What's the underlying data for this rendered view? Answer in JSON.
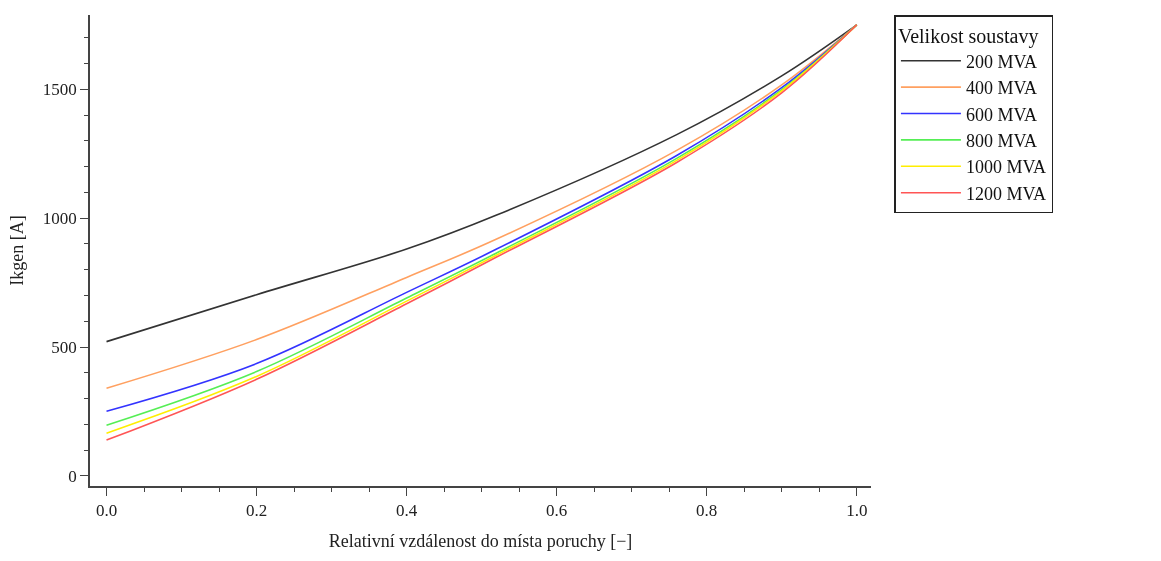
{
  "chart_data": {
    "type": "line",
    "xlabel": "Relativní vzdálenost do místa poruchy [−]",
    "ylabel": "Ikgen [A]",
    "legend_title": "Velikost soustavy",
    "legend": "right",
    "marker": "none",
    "line_style": "solid",
    "x": [
      0,
      0.2,
      0.4,
      0.52,
      0.76,
      0.9,
      1.0
    ],
    "xlim": [
      -0.022,
      1.019
    ],
    "xticks": [
      {
        "value": 0,
        "label": "0.0"
      },
      {
        "value": 0.2,
        "label": "0.2"
      },
      {
        "value": 0.4,
        "label": "0.4"
      },
      {
        "value": 0.6,
        "label": "0.6"
      },
      {
        "value": 0.8,
        "label": "0.8"
      },
      {
        "value": 1.0,
        "label": "1.0"
      }
    ],
    "ylim": [
      -39,
      1788
    ],
    "yticks": [
      0,
      500,
      1000,
      1500
    ],
    "series": [
      {
        "name": "200 MVA",
        "color": "#333333",
        "values": [
          521,
          703,
          880,
          1012,
          1324,
          1552,
          1750
        ]
      },
      {
        "name": "400 MVA",
        "color": "#ffa060",
        "values": [
          340,
          529,
          770,
          919,
          1263,
          1517,
          1750
        ]
      },
      {
        "name": "600 MVA",
        "color": "#3333ff",
        "values": [
          251,
          436,
          712,
          880,
          1243,
          1506,
          1750
        ]
      },
      {
        "name": "800 MVA",
        "color": "#55ee55",
        "values": [
          197,
          405,
          690,
          865,
          1232,
          1498,
          1750
        ]
      },
      {
        "name": "1000 MVA",
        "color": "#ffee00",
        "values": [
          166,
          386,
          678,
          857,
          1224,
          1494,
          1750
        ]
      },
      {
        "name": "1200 MVA",
        "color": "#ff5555",
        "values": [
          139,
          375,
          668,
          849,
          1216,
          1486,
          1750
        ]
      }
    ]
  }
}
